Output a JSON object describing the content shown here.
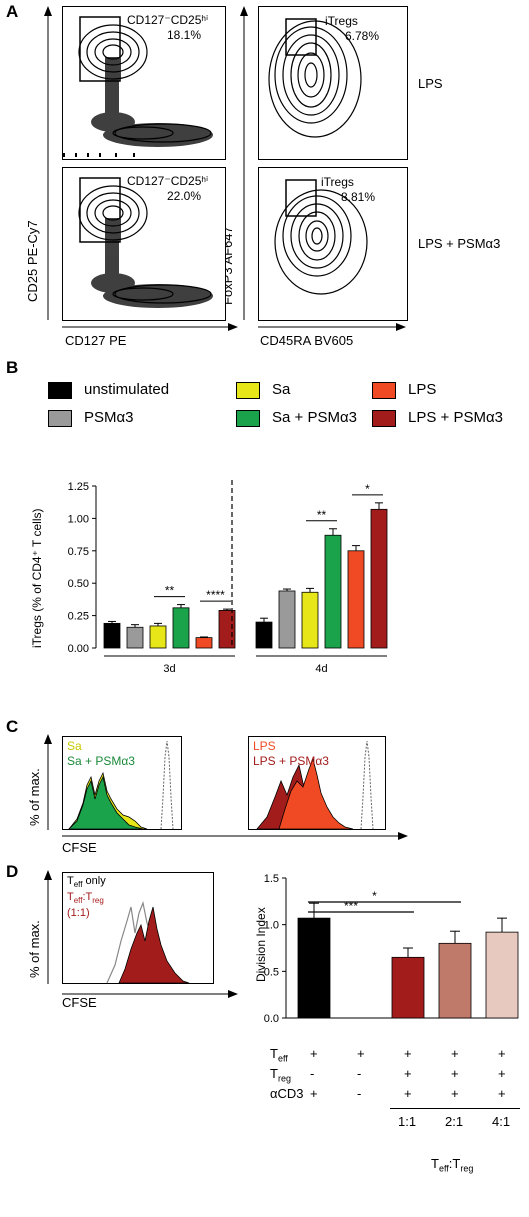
{
  "panel_a": {
    "letter": "A",
    "y_label_left": "CD25 PE-Cy7",
    "x_label_left": "CD127 PE",
    "y_label_right": "FoxP3 AF647",
    "x_label_right": "CD45RA BV605",
    "gate_top_left": "CD127⁻CD25ʰⁱ",
    "pct_top_left": "18.1%",
    "gate_bottom_left": "CD127⁻CD25ʰⁱ",
    "pct_bottom_left": "22.0%",
    "gate_top_right": "iTregs",
    "pct_top_right": "6.78%",
    "gate_bottom_right": "iTregs",
    "pct_bottom_right": "8.81%",
    "row_label_top": "LPS",
    "row_label_bottom": "LPS + PSMα3"
  },
  "panel_b": {
    "letter": "B",
    "legend": [
      {
        "label": "unstimulated",
        "color": "#000000"
      },
      {
        "label": "Sa",
        "color": "#e6e619"
      },
      {
        "label": "LPS",
        "color": "#f04a24"
      },
      {
        "label": "PSMα3",
        "color": "#9a9a9a"
      },
      {
        "label": "Sa + PSMα3",
        "color": "#1aa34a"
      },
      {
        "label": "LPS + PSMα3",
        "color": "#a31c1c"
      }
    ]
  },
  "panel_c": {
    "letter": "C",
    "y_label": "% of max.",
    "x_label": "CFSE",
    "left_legend": [
      "Sa",
      "Sa + PSMα3"
    ],
    "right_legend": [
      "LPS",
      "LPS + PSMα3"
    ]
  },
  "panel_d": {
    "letter": "D",
    "y_label": "% of max.",
    "x_label": "CFSE",
    "legend_1": "T",
    "legend_1_sub": "eff",
    "legend_1_rest": " only",
    "legend_2": "T",
    "legend_2_sub": "eff",
    "legend_2_mid": ":T",
    "legend_2_sub2": "reg",
    "legend_3": "(1:1)",
    "table_rows": [
      {
        "label": "T",
        "sub": "eff",
        "cells": [
          "+",
          "+",
          "+",
          "+",
          "+"
        ]
      },
      {
        "label": "T",
        "sub": "reg",
        "cells": [
          "-",
          "-",
          "+",
          "+",
          "+"
        ]
      },
      {
        "label": "αCD3",
        "sub": "",
        "cells": [
          "+",
          "-",
          "+",
          "+",
          "+"
        ]
      }
    ],
    "ratios": [
      "1:1",
      "2:1",
      "4:1"
    ],
    "ratio_title": "T",
    "ratio_title_sub1": "eff",
    "ratio_title_mid": ":T",
    "ratio_title_sub2": "reg"
  },
  "chart_data": [
    {
      "type": "bar",
      "ylabel": "iTregs (% of CD4⁺ T cells)",
      "ylim": [
        0,
        1.25
      ],
      "yticks": [
        "0.00",
        "0.25",
        "0.50",
        "0.75",
        "1.00",
        "1.25"
      ],
      "groups": [
        "3d",
        "4d"
      ],
      "series": [
        {
          "name": "unstimulated",
          "values": [
            0.19,
            0.2
          ],
          "errors": [
            0.015,
            0.03
          ],
          "color": "#000000"
        },
        {
          "name": "PSMα3",
          "values": [
            0.16,
            0.44
          ],
          "errors": [
            0.02,
            0.015
          ],
          "color": "#9a9a9a"
        },
        {
          "name": "Sa",
          "values": [
            0.17,
            0.43
          ],
          "errors": [
            0.02,
            0.03
          ],
          "color": "#e6e619"
        },
        {
          "name": "Sa + PSMα3",
          "values": [
            0.31,
            0.87
          ],
          "errors": [
            0.025,
            0.05
          ],
          "color": "#1aa34a"
        },
        {
          "name": "LPS",
          "values": [
            0.08,
            0.75
          ],
          "errors": [
            0.005,
            0.04
          ],
          "color": "#f04a24"
        },
        {
          "name": "LPS + PSMα3",
          "values": [
            0.29,
            1.07
          ],
          "errors": [
            0.01,
            0.05
          ],
          "color": "#a31c1c"
        }
      ],
      "significance": [
        {
          "group": "3d",
          "pair": [
            "Sa",
            "Sa + PSMα3"
          ],
          "label": "**"
        },
        {
          "group": "3d",
          "pair": [
            "LPS",
            "LPS + PSMα3"
          ],
          "label": "****"
        },
        {
          "group": "4d",
          "pair": [
            "Sa",
            "Sa + PSMα3"
          ],
          "label": "**"
        },
        {
          "group": "4d",
          "pair": [
            "LPS",
            "LPS + PSMα3"
          ],
          "label": "*"
        }
      ]
    },
    {
      "type": "bar",
      "ylabel": "Division Index",
      "ylim": [
        0,
        1.5
      ],
      "yticks": [
        "0.0",
        "0.5",
        "1.0",
        "1.5"
      ],
      "values": [
        1.07,
        0,
        0.65,
        0.8,
        0.92
      ],
      "errors": [
        0.16,
        0,
        0.1,
        0.13,
        0.15
      ],
      "colors": [
        "#000000",
        "#ffffff",
        "#a31c1c",
        "#c07a6a",
        "#e8c9bf"
      ],
      "significance": [
        {
          "from": 0,
          "to": 3,
          "label": "*"
        },
        {
          "from": 0,
          "to": 2,
          "label": "***"
        }
      ]
    }
  ]
}
